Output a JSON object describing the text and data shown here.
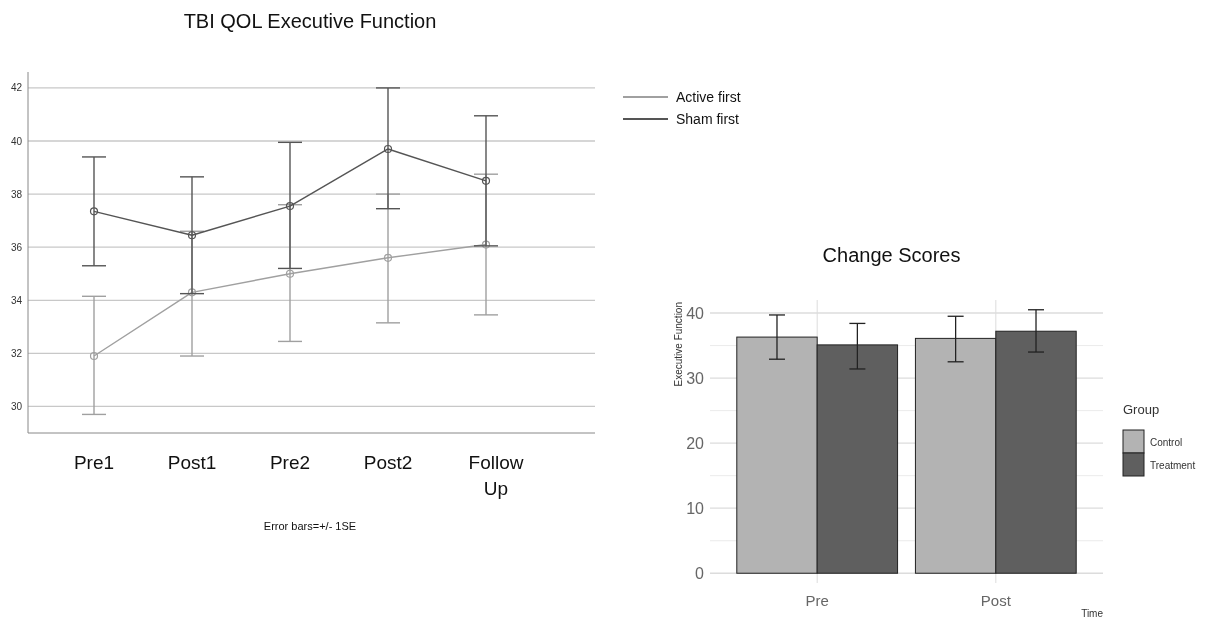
{
  "chart_data": [
    {
      "type": "line",
      "title": "TBI QOL Executive Function",
      "categories": [
        "Pre1",
        "Post1",
        "Pre2",
        "Post2",
        "Follow Up"
      ],
      "series": [
        {
          "name": "Active first",
          "color": "#a0a0a0",
          "values": [
            31.9,
            34.3,
            35.0,
            35.6,
            36.1
          ],
          "errors": [
            [
              29.7,
              34.15
            ],
            [
              31.9,
              36.6
            ],
            [
              32.45,
              37.6
            ],
            [
              33.15,
              38.0
            ],
            [
              33.45,
              38.75
            ]
          ]
        },
        {
          "name": "Sham first",
          "color": "#555555",
          "values": [
            37.35,
            36.45,
            37.55,
            39.7,
            38.5
          ],
          "errors": [
            [
              35.3,
              39.4
            ],
            [
              34.25,
              38.65
            ],
            [
              35.2,
              39.95
            ],
            [
              37.45,
              42.0
            ],
            [
              36.05,
              40.95
            ]
          ]
        }
      ],
      "ylim": [
        29,
        42.6
      ],
      "yticks": [
        30,
        32,
        34,
        36,
        38,
        40,
        42
      ],
      "grid": "y",
      "marker": "circle",
      "legend": "top right",
      "annotations": [
        "Error bars=+/- 1SE"
      ]
    },
    {
      "type": "bar",
      "title": "Change Scores",
      "categories": [
        "Pre",
        "Post"
      ],
      "xlabel": "Time",
      "ylabel": "Executive Function",
      "legend_title": "Group",
      "series": [
        {
          "name": "Control",
          "color": "#b3b3b3",
          "values": [
            36.3,
            36.1
          ],
          "errors": [
            [
              32.9,
              39.7
            ],
            [
              32.5,
              39.5
            ]
          ]
        },
        {
          "name": "Treatment",
          "color": "#5f5f5f",
          "values": [
            35.1,
            37.2
          ],
          "errors": [
            [
              31.4,
              38.4
            ],
            [
              34.0,
              40.5
            ]
          ]
        }
      ],
      "ylim": [
        -1.5,
        42
      ],
      "yticks": [
        0,
        10,
        20,
        30,
        40
      ],
      "grid": true,
      "legend": "right"
    }
  ]
}
